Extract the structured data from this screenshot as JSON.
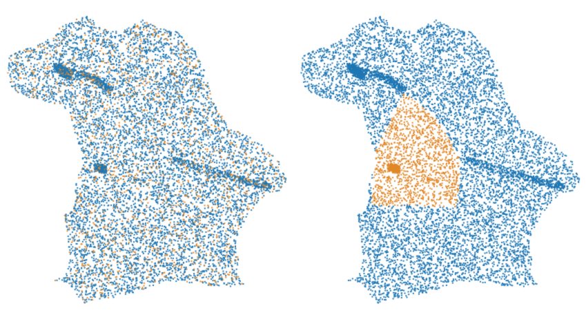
{
  "figure": {
    "panels": [
      {
        "id": "random-sample",
        "sample_pattern": "scattered",
        "colors": {
          "primary": "#1f77b4",
          "highlight": "#e1892a"
        }
      },
      {
        "id": "region-sample",
        "sample_pattern": "contiguous-region",
        "colors": {
          "primary": "#1f77b4",
          "highlight": "#e1892a"
        }
      }
    ],
    "background": "#ffffff"
  }
}
